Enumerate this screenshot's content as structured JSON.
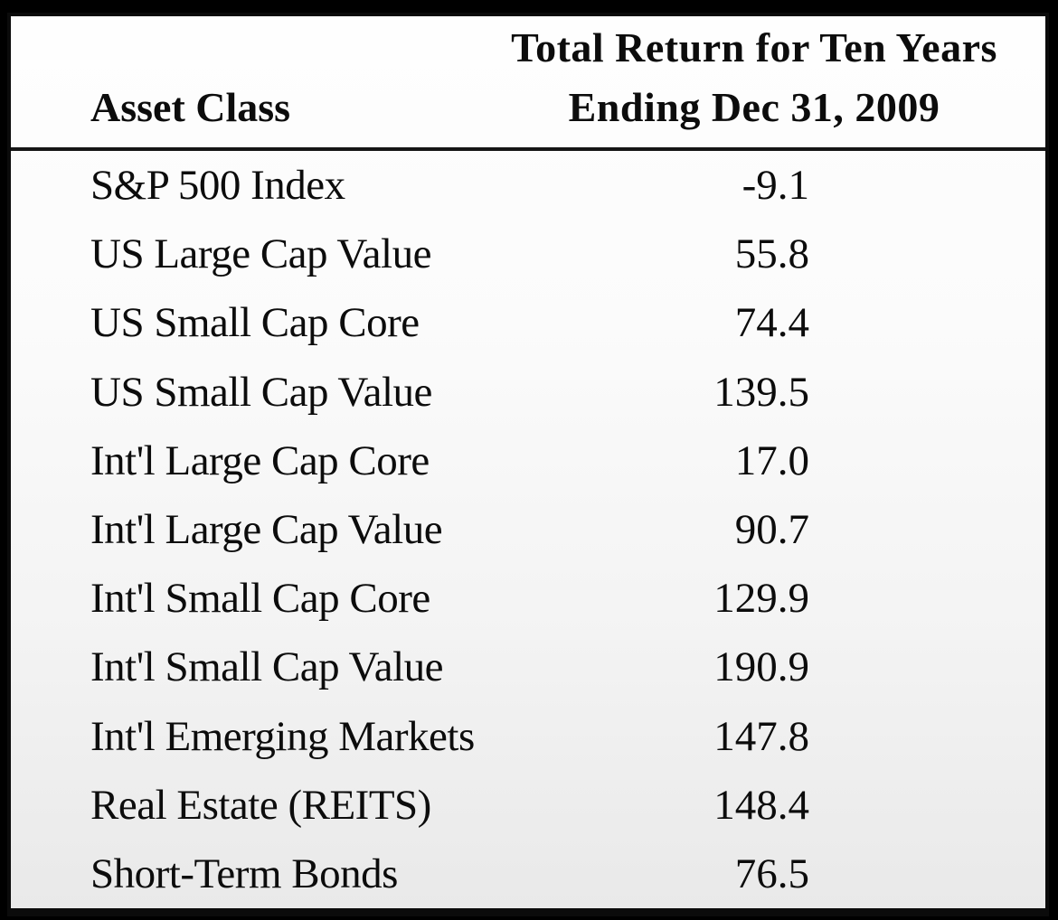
{
  "page": {
    "background": "#000000"
  },
  "colors": {
    "frame_border": "#0b0b0b",
    "header_rule": "#161616",
    "text": "#0c0c0c",
    "table_bg_top": "#fefefe",
    "table_bg_bottom": "#e9e9e9"
  },
  "table": {
    "header": {
      "asset_class": "Asset Class",
      "return_title_line1": "Total Return for Ten Years",
      "return_title_line2": "Ending Dec 31, 2009"
    },
    "rows": [
      {
        "label": "S&P 500 Index",
        "value": "-9.1"
      },
      {
        "label": "US Large Cap Value",
        "value": "55.8"
      },
      {
        "label": "US Small Cap Core",
        "value": "74.4"
      },
      {
        "label": "US Small Cap Value",
        "value": "139.5"
      },
      {
        "label": "Int'l Large Cap Core",
        "value": "17.0"
      },
      {
        "label": "Int'l Large Cap Value",
        "value": "90.7"
      },
      {
        "label": "Int'l Small Cap Core",
        "value": "129.9"
      },
      {
        "label": "Int'l Small Cap Value",
        "value": "190.9"
      },
      {
        "label": "Int'l Emerging Markets",
        "value": "147.8"
      },
      {
        "label": "Real Estate (REITS)",
        "value": "148.4"
      },
      {
        "label": "Short-Term Bonds",
        "value": "76.5"
      }
    ]
  },
  "chart_data": {
    "type": "table",
    "title": "Total Return for Ten Years Ending Dec 31, 2009",
    "columns": [
      "Asset Class",
      "Total Return for Ten Years Ending Dec 31, 2009"
    ],
    "categories": [
      "S&P 500 Index",
      "US Large Cap Value",
      "US Small Cap Core",
      "US Small Cap Value",
      "Int'l Large Cap Core",
      "Int'l Large Cap Value",
      "Int'l Small Cap Core",
      "Int'l Small Cap Value",
      "Int'l Emerging Markets",
      "Real Estate (REITS)",
      "Short-Term Bonds"
    ],
    "values": [
      -9.1,
      55.8,
      74.4,
      139.5,
      17.0,
      90.7,
      129.9,
      190.9,
      147.8,
      148.4,
      76.5
    ]
  }
}
